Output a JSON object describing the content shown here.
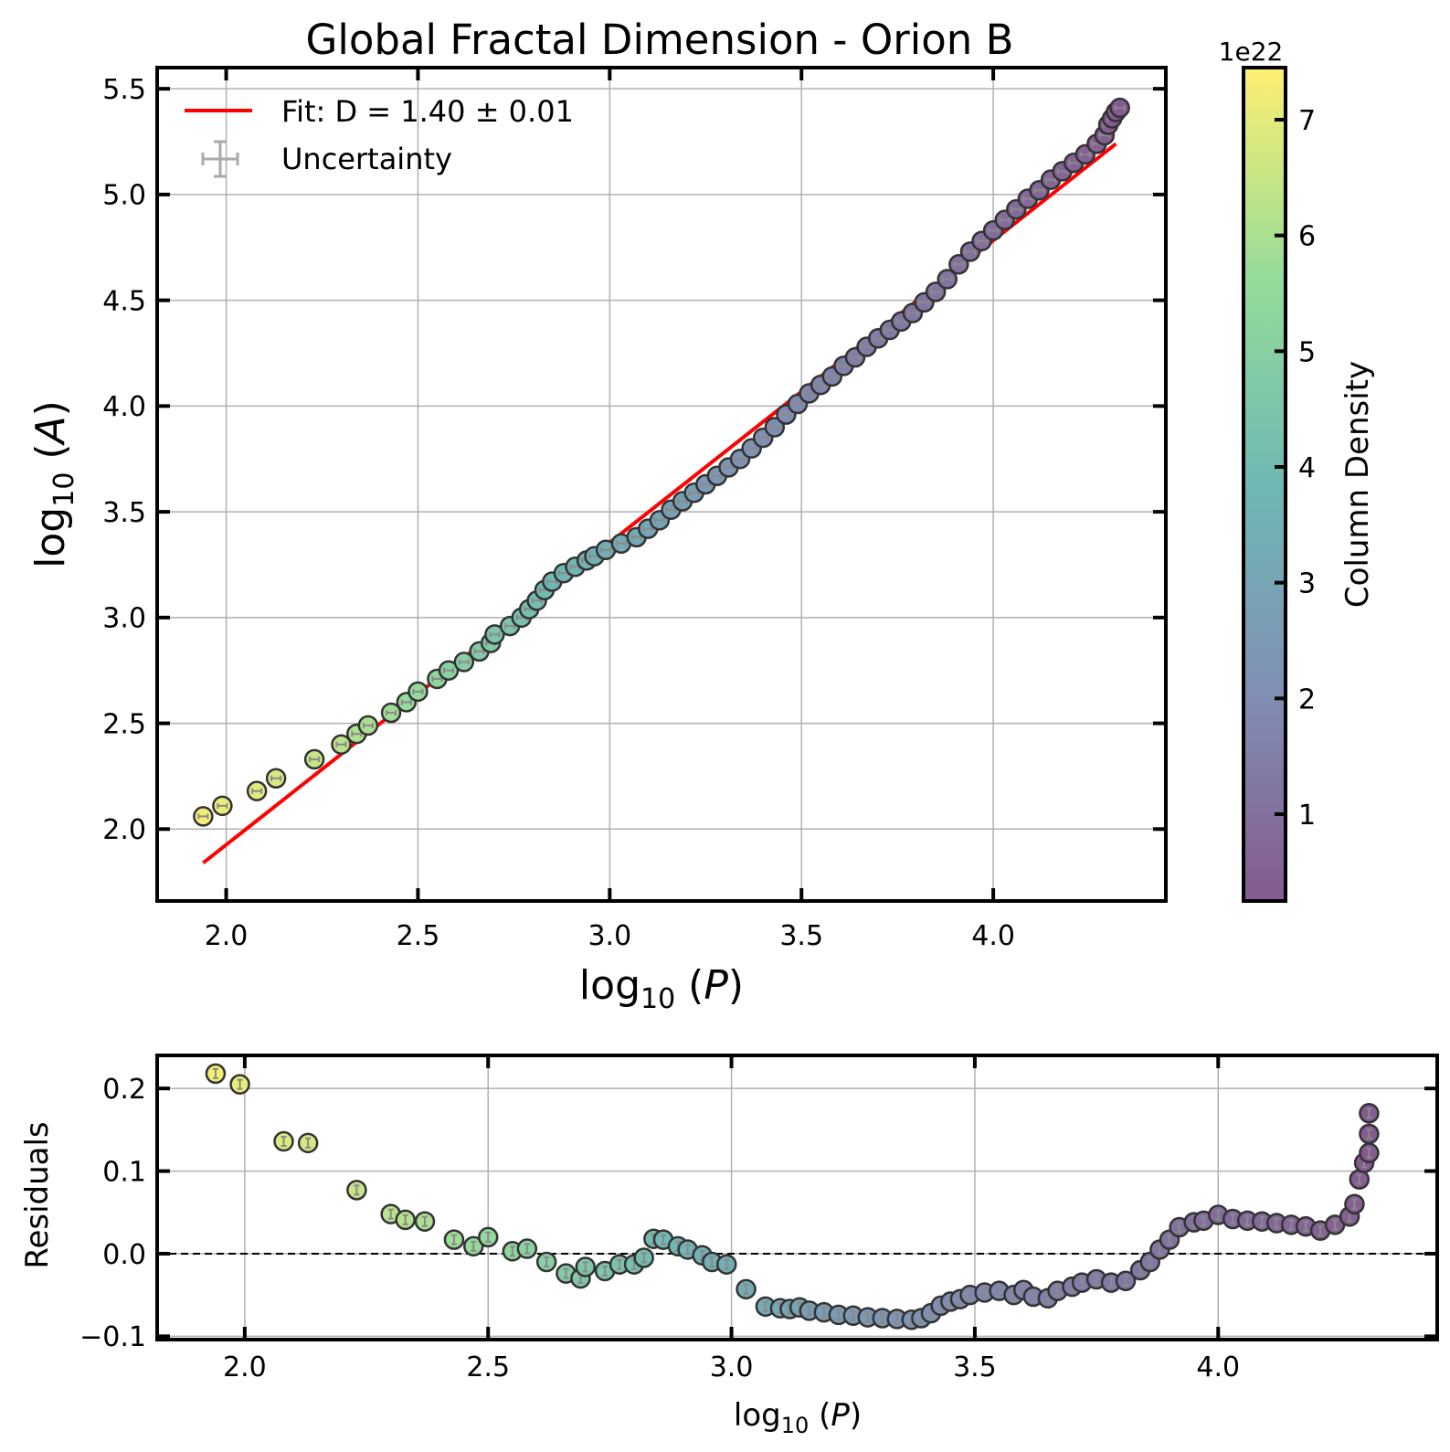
{
  "chart_data": [
    {
      "type": "scatter",
      "title": "Global Fractal Dimension - Orion B",
      "xlabel": {
        "base": "log",
        "sub": "10",
        "arg": "P"
      },
      "ylabel": {
        "base": "log",
        "sub": "10",
        "arg": "A"
      },
      "xlim": [
        1.82,
        4.45
      ],
      "ylim": [
        1.66,
        5.6
      ],
      "xticks": [
        "2.0",
        "2.5",
        "3.0",
        "3.5",
        "4.0"
      ],
      "yticks": [
        "2.0",
        "2.5",
        "3.0",
        "3.5",
        "4.0",
        "4.5",
        "5.0",
        "5.5"
      ],
      "grid": true,
      "legend": {
        "position": "upper-left",
        "fit_label": "Fit: D = 1.40 ± 0.01",
        "uncertainty_label": "Uncertainty"
      },
      "fit_line": {
        "x": [
          1.94,
          4.32
        ],
        "y": [
          1.84,
          5.24
        ],
        "color": "#ff0000"
      },
      "points": [
        [
          1.94,
          2.06,
          7.3
        ],
        [
          1.99,
          2.11,
          7.1
        ],
        [
          2.08,
          2.18,
          6.9
        ],
        [
          2.13,
          2.24,
          6.8
        ],
        [
          2.23,
          2.33,
          6.5
        ],
        [
          2.3,
          2.4,
          6.3
        ],
        [
          2.34,
          2.45,
          6.1
        ],
        [
          2.37,
          2.49,
          6.0
        ],
        [
          2.43,
          2.55,
          5.8
        ],
        [
          2.47,
          2.6,
          5.6
        ],
        [
          2.5,
          2.65,
          5.5
        ],
        [
          2.55,
          2.71,
          5.3
        ],
        [
          2.58,
          2.75,
          5.1
        ],
        [
          2.62,
          2.79,
          5.0
        ],
        [
          2.66,
          2.84,
          4.8
        ],
        [
          2.69,
          2.88,
          4.7
        ],
        [
          2.7,
          2.92,
          4.6
        ],
        [
          2.74,
          2.96,
          4.5
        ],
        [
          2.77,
          3.0,
          4.3
        ],
        [
          2.79,
          3.04,
          4.2
        ],
        [
          2.81,
          3.08,
          4.1
        ],
        [
          2.83,
          3.13,
          4.0
        ],
        [
          2.85,
          3.17,
          3.9
        ],
        [
          2.88,
          3.21,
          3.8
        ],
        [
          2.91,
          3.24,
          3.7
        ],
        [
          2.94,
          3.27,
          3.6
        ],
        [
          2.96,
          3.29,
          3.5
        ],
        [
          2.99,
          3.32,
          3.4
        ],
        [
          3.03,
          3.35,
          3.3
        ],
        [
          3.07,
          3.38,
          3.2
        ],
        [
          3.1,
          3.42,
          3.1
        ],
        [
          3.13,
          3.46,
          3.0
        ],
        [
          3.16,
          3.51,
          2.9
        ],
        [
          3.19,
          3.55,
          2.8
        ],
        [
          3.22,
          3.59,
          2.7
        ],
        [
          3.25,
          3.63,
          2.6
        ],
        [
          3.28,
          3.67,
          2.5
        ],
        [
          3.31,
          3.71,
          2.4
        ],
        [
          3.34,
          3.75,
          2.3
        ],
        [
          3.37,
          3.8,
          2.2
        ],
        [
          3.4,
          3.85,
          2.1
        ],
        [
          3.43,
          3.9,
          2.0
        ],
        [
          3.46,
          3.96,
          1.95
        ],
        [
          3.49,
          4.01,
          1.9
        ],
        [
          3.52,
          4.06,
          1.8
        ],
        [
          3.55,
          4.1,
          1.75
        ],
        [
          3.58,
          4.14,
          1.7
        ],
        [
          3.61,
          4.19,
          1.6
        ],
        [
          3.64,
          4.23,
          1.55
        ],
        [
          3.67,
          4.28,
          1.5
        ],
        [
          3.7,
          4.32,
          1.4
        ],
        [
          3.73,
          4.36,
          1.35
        ],
        [
          3.76,
          4.4,
          1.3
        ],
        [
          3.79,
          4.44,
          1.25
        ],
        [
          3.82,
          4.49,
          1.2
        ],
        [
          3.85,
          4.54,
          1.15
        ],
        [
          3.88,
          4.6,
          1.1
        ],
        [
          3.91,
          4.67,
          1.05
        ],
        [
          3.94,
          4.73,
          1.0
        ],
        [
          3.97,
          4.78,
          0.95
        ],
        [
          4.0,
          4.83,
          0.9
        ],
        [
          4.03,
          4.88,
          0.85
        ],
        [
          4.06,
          4.93,
          0.8
        ],
        [
          4.09,
          4.98,
          0.75
        ],
        [
          4.12,
          5.02,
          0.7
        ],
        [
          4.15,
          5.07,
          0.65
        ],
        [
          4.18,
          5.11,
          0.6
        ],
        [
          4.21,
          5.15,
          0.55
        ],
        [
          4.24,
          5.19,
          0.5
        ],
        [
          4.27,
          5.24,
          0.45
        ],
        [
          4.29,
          5.28,
          0.4
        ],
        [
          4.3,
          5.33,
          0.35
        ],
        [
          4.31,
          5.36,
          0.3
        ],
        [
          4.32,
          5.39,
          0.25
        ],
        [
          4.33,
          5.41,
          0.2
        ]
      ],
      "colorbar": {
        "label": "Column Density",
        "multiplier": "1e22",
        "lim": [
          0.25,
          7.45
        ],
        "ticks": [
          "1",
          "2",
          "3",
          "4",
          "5",
          "6",
          "7"
        ],
        "colormap": [
          "#440154",
          "#3b528b",
          "#21918c",
          "#5ec962",
          "#fde725"
        ],
        "alpha": 0.65
      }
    },
    {
      "type": "scatter",
      "title": "",
      "xlabel": {
        "base": "log",
        "sub": "10",
        "arg": "P"
      },
      "ylabel": "Residuals",
      "xlim": [
        1.82,
        4.45
      ],
      "ylim": [
        -0.104,
        0.24
      ],
      "xticks": [
        "2.0",
        "2.5",
        "3.0",
        "3.5",
        "4.0"
      ],
      "yticks": [
        "0.2",
        "0.1",
        "0.0",
        "−0.1"
      ],
      "grid": true,
      "reference_line": {
        "y": 0.0,
        "style": "dashed"
      },
      "points": [
        [
          1.94,
          0.218,
          7.3
        ],
        [
          1.99,
          0.205,
          7.1
        ],
        [
          2.08,
          0.136,
          6.9
        ],
        [
          2.13,
          0.134,
          6.8
        ],
        [
          2.23,
          0.077,
          6.5
        ],
        [
          2.3,
          0.048,
          6.3
        ],
        [
          2.33,
          0.041,
          6.2
        ],
        [
          2.37,
          0.039,
          6.0
        ],
        [
          2.43,
          0.017,
          5.8
        ],
        [
          2.47,
          0.009,
          5.6
        ],
        [
          2.5,
          0.02,
          5.5
        ],
        [
          2.55,
          0.003,
          5.3
        ],
        [
          2.58,
          0.006,
          5.1
        ],
        [
          2.62,
          -0.01,
          5.0
        ],
        [
          2.66,
          -0.024,
          4.8
        ],
        [
          2.69,
          -0.03,
          4.7
        ],
        [
          2.7,
          -0.016,
          4.6
        ],
        [
          2.74,
          -0.021,
          4.5
        ],
        [
          2.77,
          -0.013,
          4.4
        ],
        [
          2.8,
          -0.013,
          4.2
        ],
        [
          2.82,
          -0.005,
          4.1
        ],
        [
          2.84,
          0.018,
          4.0
        ],
        [
          2.86,
          0.017,
          3.9
        ],
        [
          2.89,
          0.009,
          3.8
        ],
        [
          2.91,
          0.005,
          3.7
        ],
        [
          2.94,
          -0.002,
          3.6
        ],
        [
          2.96,
          -0.01,
          3.5
        ],
        [
          2.99,
          -0.013,
          3.4
        ],
        [
          3.03,
          -0.043,
          3.3
        ],
        [
          3.07,
          -0.064,
          3.2
        ],
        [
          3.1,
          -0.066,
          3.1
        ],
        [
          3.12,
          -0.067,
          3.0
        ],
        [
          3.14,
          -0.065,
          2.9
        ],
        [
          3.16,
          -0.069,
          2.8
        ],
        [
          3.19,
          -0.071,
          2.7
        ],
        [
          3.22,
          -0.074,
          2.6
        ],
        [
          3.25,
          -0.075,
          2.5
        ],
        [
          3.28,
          -0.077,
          2.45
        ],
        [
          3.31,
          -0.078,
          2.4
        ],
        [
          3.34,
          -0.079,
          2.35
        ],
        [
          3.37,
          -0.08,
          2.3
        ],
        [
          3.39,
          -0.078,
          2.2
        ],
        [
          3.41,
          -0.072,
          2.1
        ],
        [
          3.43,
          -0.063,
          2.05
        ],
        [
          3.45,
          -0.058,
          2.0
        ],
        [
          3.47,
          -0.055,
          1.95
        ],
        [
          3.49,
          -0.05,
          1.9
        ],
        [
          3.52,
          -0.047,
          1.85
        ],
        [
          3.55,
          -0.045,
          1.8
        ],
        [
          3.58,
          -0.05,
          1.75
        ],
        [
          3.6,
          -0.044,
          1.7
        ],
        [
          3.62,
          -0.052,
          1.65
        ],
        [
          3.65,
          -0.054,
          1.6
        ],
        [
          3.67,
          -0.045,
          1.55
        ],
        [
          3.7,
          -0.04,
          1.5
        ],
        [
          3.72,
          -0.035,
          1.45
        ],
        [
          3.75,
          -0.031,
          1.4
        ],
        [
          3.78,
          -0.035,
          1.35
        ],
        [
          3.81,
          -0.033,
          1.3
        ],
        [
          3.84,
          -0.02,
          1.25
        ],
        [
          3.86,
          -0.01,
          1.2
        ],
        [
          3.88,
          0.005,
          1.15
        ],
        [
          3.9,
          0.017,
          1.1
        ],
        [
          3.92,
          0.032,
          1.05
        ],
        [
          3.95,
          0.038,
          1.0
        ],
        [
          3.97,
          0.04,
          0.95
        ],
        [
          4.0,
          0.047,
          0.9
        ],
        [
          4.03,
          0.042,
          0.85
        ],
        [
          4.06,
          0.04,
          0.8
        ],
        [
          4.09,
          0.039,
          0.75
        ],
        [
          4.12,
          0.037,
          0.7
        ],
        [
          4.15,
          0.035,
          0.65
        ],
        [
          4.18,
          0.033,
          0.6
        ],
        [
          4.21,
          0.028,
          0.55
        ],
        [
          4.24,
          0.035,
          0.5
        ],
        [
          4.27,
          0.045,
          0.45
        ],
        [
          4.28,
          0.06,
          0.4
        ],
        [
          4.29,
          0.09,
          0.35
        ],
        [
          4.3,
          0.11,
          0.3
        ],
        [
          4.31,
          0.122,
          0.25
        ],
        [
          4.31,
          0.145,
          0.22
        ],
        [
          4.31,
          0.17,
          0.2
        ]
      ]
    }
  ]
}
